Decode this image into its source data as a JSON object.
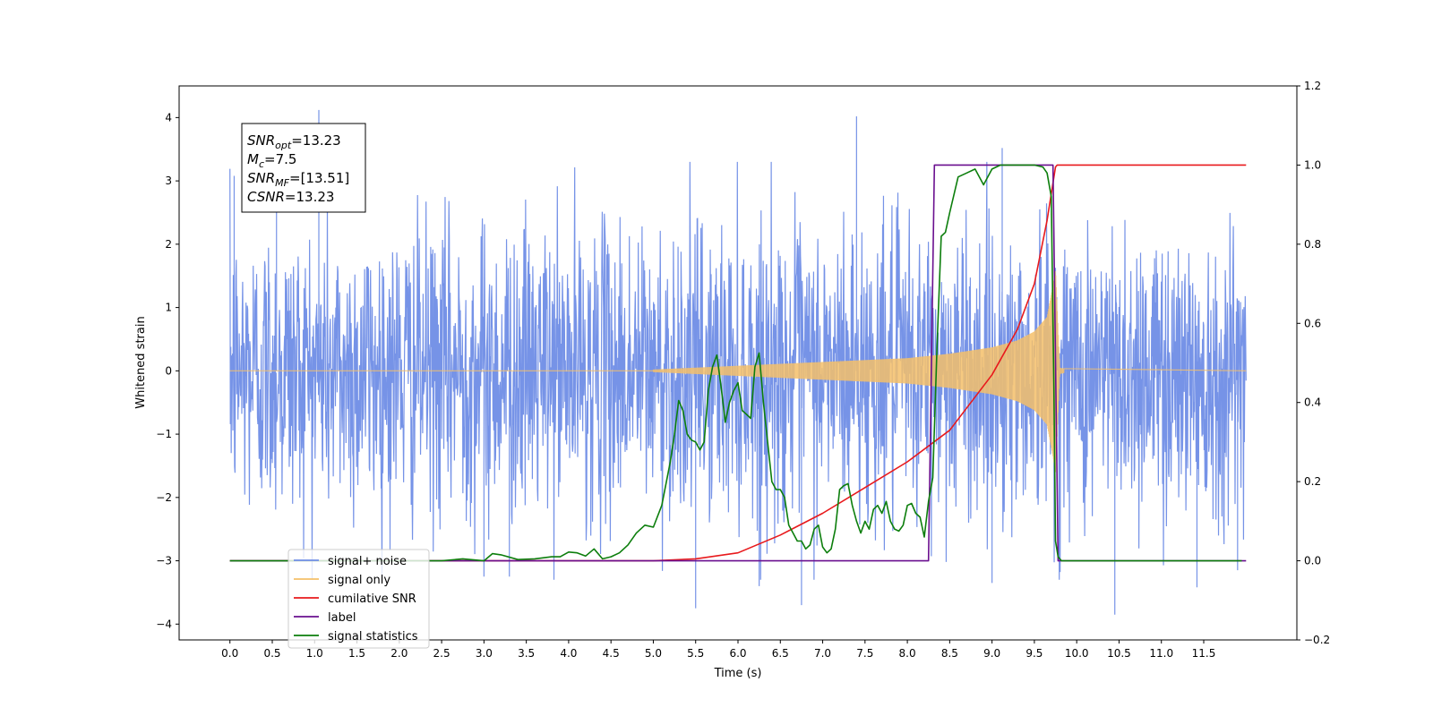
{
  "chart_data": {
    "type": "line",
    "xlabel": "Time (s)",
    "ylabel": "Whitened strain",
    "xlim": [
      -0.6,
      12.6
    ],
    "ylim": [
      -4.25,
      4.5
    ],
    "y2lim": [
      -0.2,
      1.2
    ],
    "x_ticks": [
      0.0,
      0.5,
      1.0,
      1.5,
      2.0,
      2.5,
      3.0,
      3.5,
      4.0,
      4.5,
      5.0,
      5.5,
      6.0,
      6.5,
      7.0,
      7.5,
      8.0,
      8.5,
      9.0,
      9.5,
      10.0,
      10.5,
      11.0,
      11.5
    ],
    "x_tick_labels": [
      "0.0",
      "0.5",
      "1.0",
      "1.5",
      "2.0",
      "2.5",
      "3.0",
      "3.5",
      "4.0",
      "4.5",
      "5.0",
      "5.5",
      "6.0",
      "6.5",
      "7.0",
      "7.5",
      "8.0",
      "8.5",
      "9.0",
      "9.5",
      "10.0",
      "10.5",
      "11.0",
      "11.5"
    ],
    "y_ticks": [
      -4,
      -3,
      -2,
      -1,
      0,
      1,
      2,
      3,
      4
    ],
    "y_tick_labels": [
      "−4",
      "−3",
      "−2",
      "−1",
      "0",
      "1",
      "2",
      "3",
      "4"
    ],
    "y2_ticks": [
      -0.2,
      0.0,
      0.2,
      0.4,
      0.6,
      0.8,
      1.0,
      1.2
    ],
    "y2_tick_labels": [
      "−0.2",
      "0.0",
      "0.2",
      "0.4",
      "0.6",
      "0.8",
      "1.0",
      "1.2"
    ],
    "grid": false,
    "legend_position": "lower-left",
    "annotation": [
      {
        "sym": "SNR",
        "sub": "opt",
        "val": "=13.23"
      },
      {
        "sym": "M",
        "sub": "c",
        "val": "=7.5"
      },
      {
        "sym": "SNR",
        "sub": "MF",
        "val": "=[13.51]"
      },
      {
        "sym": "CSNR",
        "sub": "",
        "val": "=13.23"
      }
    ],
    "series": [
      {
        "name": "signal+ noise",
        "color": "#6f8de6",
        "axis": "left",
        "description": "whitened noise, amplitude ~1.2, range about -3.8 to 4.1",
        "x_range": [
          0.0,
          12.0
        ],
        "sample_rate": 2000,
        "spike_max": [
          [
            1.05,
            4.12
          ],
          [
            7.4,
            4.02
          ],
          [
            9.12,
            3.52
          ],
          [
            0.05,
            3.08
          ],
          [
            0.55,
            3.02
          ]
        ],
        "spike_min": [
          [
            10.45,
            -3.85
          ],
          [
            5.5,
            -3.75
          ],
          [
            6.75,
            -3.7
          ],
          [
            6.25,
            -3.4
          ],
          [
            9.0,
            -3.35
          ],
          [
            11.42,
            -3.42
          ],
          [
            3.0,
            -3.25
          ],
          [
            3.3,
            -3.25
          ],
          [
            11.9,
            -3.15
          ]
        ]
      },
      {
        "name": "signal only",
        "color": "#f5c06a",
        "axis": "left",
        "description": "chirp, amplitude rising from ~0 at 5.0s to ~1.6 at 9.75s, then zero",
        "x_range": [
          0.0,
          12.0
        ],
        "chirp_start": 5.0,
        "chirp_end": 9.75,
        "chirp_peak_amplitude": 1.6,
        "envelope": [
          [
            5.0,
            0.02
          ],
          [
            6.0,
            0.08
          ],
          [
            7.0,
            0.14
          ],
          [
            8.0,
            0.2
          ],
          [
            8.5,
            0.27
          ],
          [
            9.0,
            0.37
          ],
          [
            9.3,
            0.48
          ],
          [
            9.5,
            0.62
          ],
          [
            9.65,
            0.85
          ],
          [
            9.72,
            1.35
          ],
          [
            9.75,
            1.6
          ],
          [
            9.8,
            0.05
          ],
          [
            9.9,
            0.02
          ],
          [
            12.0,
            0.0
          ]
        ]
      },
      {
        "name": "cumilative SNR",
        "color": "#e8191c",
        "axis": "right",
        "x": [
          0.0,
          5.0,
          5.5,
          6.0,
          6.5,
          7.0,
          7.5,
          8.0,
          8.5,
          9.0,
          9.3,
          9.5,
          9.65,
          9.75,
          9.77,
          12.0
        ],
        "y": [
          0.0,
          0.0,
          0.005,
          0.02,
          0.065,
          0.12,
          0.185,
          0.25,
          0.33,
          0.47,
          0.585,
          0.7,
          0.86,
          0.995,
          1.0,
          1.0
        ]
      },
      {
        "name": "label",
        "color": "#6a0f8f",
        "axis": "right",
        "x": [
          0.0,
          8.25,
          8.32,
          9.72,
          9.78,
          12.0
        ],
        "y": [
          0.0,
          0.0,
          1.0,
          1.0,
          0.0,
          0.0
        ]
      },
      {
        "name": "signal statistics",
        "color": "#0c7e0c",
        "axis": "right",
        "x": [
          0.0,
          0.5,
          1.0,
          1.5,
          2.0,
          2.5,
          2.75,
          3.0,
          3.1,
          3.2,
          3.4,
          3.6,
          3.8,
          3.9,
          4.0,
          4.1,
          4.2,
          4.3,
          4.4,
          4.5,
          4.6,
          4.7,
          4.8,
          4.9,
          5.0,
          5.1,
          5.2,
          5.25,
          5.3,
          5.35,
          5.4,
          5.45,
          5.5,
          5.55,
          5.6,
          5.65,
          5.7,
          5.75,
          5.8,
          5.85,
          5.9,
          5.95,
          6.0,
          6.05,
          6.1,
          6.15,
          6.2,
          6.25,
          6.3,
          6.35,
          6.4,
          6.45,
          6.5,
          6.55,
          6.6,
          6.65,
          6.7,
          6.75,
          6.8,
          6.85,
          6.9,
          6.95,
          7.0,
          7.05,
          7.1,
          7.15,
          7.2,
          7.25,
          7.3,
          7.35,
          7.4,
          7.45,
          7.5,
          7.55,
          7.6,
          7.65,
          7.7,
          7.75,
          7.8,
          7.85,
          7.9,
          7.95,
          8.0,
          8.05,
          8.1,
          8.15,
          8.2,
          8.25,
          8.3,
          8.35,
          8.4,
          8.45,
          8.5,
          8.6,
          8.7,
          8.8,
          8.9,
          9.0,
          9.1,
          9.2,
          9.3,
          9.4,
          9.5,
          9.6,
          9.65,
          9.7,
          9.73,
          9.75,
          9.78,
          9.82,
          10.0,
          10.5,
          11.0,
          11.5,
          11.95
        ],
        "y": [
          0.0,
          0.0,
          0.0,
          0.0,
          0.0,
          0.0,
          0.005,
          0.0,
          0.018,
          0.015,
          0.003,
          0.005,
          0.01,
          0.01,
          0.022,
          0.02,
          0.012,
          0.03,
          0.005,
          0.01,
          0.02,
          0.04,
          0.07,
          0.09,
          0.085,
          0.14,
          0.25,
          0.32,
          0.405,
          0.38,
          0.32,
          0.305,
          0.3,
          0.28,
          0.3,
          0.43,
          0.49,
          0.52,
          0.44,
          0.35,
          0.4,
          0.43,
          0.45,
          0.38,
          0.37,
          0.36,
          0.49,
          0.525,
          0.4,
          0.3,
          0.2,
          0.18,
          0.18,
          0.16,
          0.09,
          0.07,
          0.05,
          0.05,
          0.03,
          0.04,
          0.08,
          0.09,
          0.035,
          0.02,
          0.03,
          0.08,
          0.18,
          0.19,
          0.195,
          0.14,
          0.1,
          0.07,
          0.1,
          0.08,
          0.13,
          0.14,
          0.12,
          0.15,
          0.1,
          0.08,
          0.075,
          0.09,
          0.14,
          0.145,
          0.12,
          0.11,
          0.06,
          0.15,
          0.21,
          0.54,
          0.82,
          0.83,
          0.88,
          0.97,
          0.98,
          0.99,
          0.95,
          0.99,
          1.0,
          1.0,
          1.0,
          1.0,
          1.0,
          0.995,
          0.98,
          0.92,
          0.44,
          0.05,
          0.01,
          0.0,
          0.0,
          0.0,
          0.0,
          0.0,
          0.0
        ]
      }
    ],
    "legend": [
      {
        "label": "signal+ noise",
        "color": "#6f8de6"
      },
      {
        "label": "signal only",
        "color": "#f5c06a"
      },
      {
        "label": "cumilative SNR",
        "color": "#e8191c"
      },
      {
        "label": "label",
        "color": "#6a0f8f"
      },
      {
        "label": "signal statistics",
        "color": "#0c7e0c"
      }
    ]
  }
}
